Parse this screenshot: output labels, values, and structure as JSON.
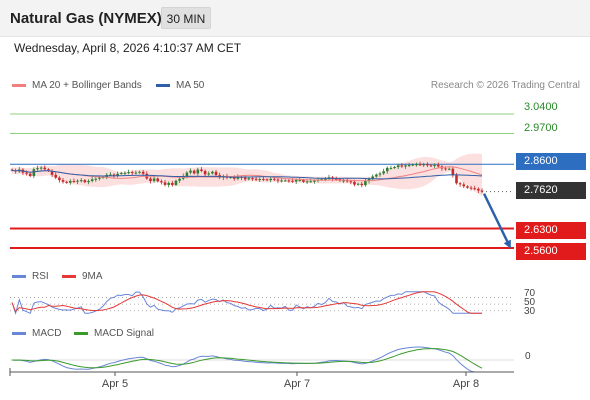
{
  "header": {
    "instrument": "Natural Gas (NYMEX)",
    "timeframe": "30 MIN"
  },
  "datetime": "Wednesday, April 8, 2026 4:10:37 AM CET",
  "legend": {
    "bollinger": "MA 20 + Bollinger Bands",
    "ma50": "MA 50",
    "credit": "Research © 2026 Trading Central"
  },
  "rsi_legend": {
    "rsi": "RSI",
    "ma": "9MA"
  },
  "macd_legend": {
    "macd": "MACD",
    "signal": "MACD Signal"
  },
  "colors": {
    "bollinger": "#f08080",
    "bollinger_fill": "#fbdada",
    "ma50": "#2f5fa8",
    "resistance": "#8fd07a",
    "support": "#e11b1b",
    "pivot": "#2d6ec0",
    "last": "#333333",
    "candle_up": "#2e7d32",
    "candle_down": "#c62828",
    "arrow": "#2d62a8",
    "rsi": "#6a86d8",
    "rsi_ma": "#e53935",
    "macd": "#6a86d8",
    "macd_signal": "#3a9a2a"
  },
  "levels": {
    "r2": "3.0400",
    "r1": "2.9700",
    "pivot": "2.8600",
    "last": "2.7620",
    "s1": "2.6300",
    "s2": "2.5600"
  },
  "rsi_levels": [
    "70",
    "50",
    "30"
  ],
  "macd_zero": "0",
  "x_labels": [
    "Apr 5",
    "Apr 7",
    "Apr 8"
  ],
  "chart_data": {
    "type": "candlestick",
    "title": "Natural Gas (NYMEX)",
    "timeframe": "30 MIN",
    "ylim": [
      2.51,
      3.09
    ],
    "x_ticks": [
      "Apr 5",
      "Apr 7",
      "Apr 8"
    ],
    "close_series": [
      2.838,
      2.834,
      2.841,
      2.83,
      2.826,
      2.818,
      2.842,
      2.846,
      2.848,
      2.842,
      2.836,
      2.822,
      2.812,
      2.803,
      2.797,
      2.794,
      2.8,
      2.798,
      2.801,
      2.803,
      2.796,
      2.8,
      2.806,
      2.808,
      2.812,
      2.814,
      2.822,
      2.823,
      2.819,
      2.826,
      2.829,
      2.829,
      2.832,
      2.83,
      2.83,
      2.833,
      2.826,
      2.809,
      2.8,
      2.809,
      2.799,
      2.795,
      2.786,
      2.793,
      2.786,
      2.801,
      2.808,
      2.818,
      2.83,
      2.837,
      2.827,
      2.841,
      2.836,
      2.824,
      2.827,
      2.833,
      2.821,
      2.812,
      2.818,
      2.812,
      2.814,
      2.808,
      2.815,
      2.812,
      2.806,
      2.81,
      2.808,
      2.805,
      2.807,
      2.806,
      2.803,
      2.808,
      2.805,
      2.801,
      2.802,
      2.802,
      2.801,
      2.798,
      2.804,
      2.804,
      2.797,
      2.799,
      2.799,
      2.801,
      2.805,
      2.807,
      2.808,
      2.813,
      2.808,
      2.807,
      2.801,
      2.802,
      2.799,
      2.797,
      2.787,
      2.79,
      2.785,
      2.8,
      2.808,
      2.816,
      2.823,
      2.827,
      2.835,
      2.847,
      2.847,
      2.85,
      2.856,
      2.852,
      2.856,
      2.857,
      2.859,
      2.86,
      2.859,
      2.86,
      2.856,
      2.854,
      2.857,
      2.852,
      2.845,
      2.843,
      2.844,
      2.82,
      2.792,
      2.788,
      2.781,
      2.776,
      2.774,
      2.772,
      2.766,
      2.762
    ],
    "bollinger": {
      "ma20_start": 2.838,
      "ma20_end": 2.823,
      "band_width_typical": 0.05
    },
    "ma50": {
      "start": 2.838,
      "end": 2.83
    },
    "levels": {
      "resistance": [
        3.04,
        2.97
      ],
      "pivot": 2.86,
      "last": 2.762,
      "support": [
        2.63,
        2.56
      ]
    },
    "rsi": {
      "levels": [
        70,
        50,
        30
      ],
      "last": 30
    },
    "macd": {
      "zero": 0
    }
  }
}
